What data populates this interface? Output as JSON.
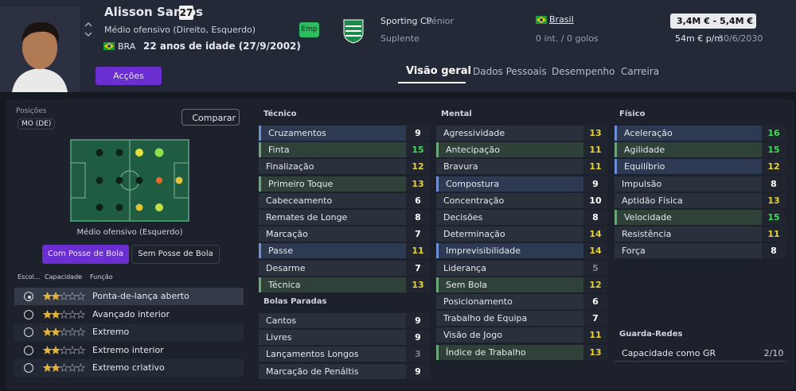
{
  "header": {
    "name": "Alisson Santos",
    "number": "27",
    "position": "Médio ofensivo (Direito, Esquerdo)",
    "nation_code": "BRA",
    "age": "22 anos de idade (27/9/2002)",
    "badge": "Emp",
    "club": "Sporting CP",
    "squad": "Sénior",
    "status": "Suplente",
    "country": "Brasil",
    "caps": "0 int. / 0 golos",
    "value": "3,4M € - 5,4M €",
    "wage": "54m € p/m",
    "contract": "30/6/2030",
    "actions": "Acções"
  },
  "tabs": [
    "Visão geral",
    "Dados Pessoais",
    "Desempenho",
    "Carreira"
  ],
  "left": {
    "positions_label": "Posições",
    "position": "MO (DE)",
    "compare": "Comparar",
    "pitch_caption": "Médio ofensivo (Esquerdo)",
    "buttons": [
      "Com Posse de Bola",
      "Sem Posse de Bola"
    ],
    "columns": [
      "Escol...",
      "Capacidade",
      "Função"
    ],
    "roles": [
      {
        "name": "Ponta-de-lança aberto",
        "stars": 2
      },
      {
        "name": "Avançado interior",
        "stars": 2
      },
      {
        "name": "Extremo",
        "stars": 2
      },
      {
        "name": "Extremo interior",
        "stars": 2
      },
      {
        "name": "Extremo criativo",
        "stars": 2
      }
    ]
  },
  "sections": [
    {
      "title": "Técnico",
      "rows": [
        {
          "name": "Cruzamentos",
          "value": 9,
          "highlight": "blue"
        },
        {
          "name": "Finta",
          "value": 15,
          "highlight": "green"
        },
        {
          "name": "Finalização",
          "value": 12
        },
        {
          "name": "Primeiro Toque",
          "value": 13,
          "highlight": "green"
        },
        {
          "name": "Cabeceamento",
          "value": 6
        },
        {
          "name": "Remates de Longe",
          "value": 8
        },
        {
          "name": "Marcação",
          "value": 7
        },
        {
          "name": "Passe",
          "value": 11,
          "highlight": "blue"
        },
        {
          "name": "Desarme",
          "value": 7
        },
        {
          "name": "Técnica",
          "value": 13,
          "highlight": "green"
        }
      ]
    },
    {
      "title": "Bolas Paradas",
      "rows": [
        {
          "name": "Cantos",
          "value": 9
        },
        {
          "name": "Livres",
          "value": 9
        },
        {
          "name": "Lançamentos Longos",
          "value": 3
        },
        {
          "name": "Marcação de Penáltis",
          "value": 9
        }
      ]
    },
    {
      "title": "Mental",
      "rows": [
        {
          "name": "Agressividade",
          "value": 13
        },
        {
          "name": "Antecipação",
          "value": 11,
          "highlight": "green"
        },
        {
          "name": "Bravura",
          "value": 11
        },
        {
          "name": "Compostura",
          "value": 9,
          "highlight": "blue"
        },
        {
          "name": "Concentração",
          "value": 10
        },
        {
          "name": "Decisões",
          "value": 8
        },
        {
          "name": "Determinação",
          "value": 14
        },
        {
          "name": "Imprevisibilidade",
          "value": 14,
          "highlight": "blue"
        },
        {
          "name": "Liderança",
          "value": 5
        },
        {
          "name": "Sem Bola",
          "value": 12,
          "highlight": "green"
        },
        {
          "name": "Posicionamento",
          "value": 6
        },
        {
          "name": "Trabalho de Equipa",
          "value": 7
        },
        {
          "name": "Visão de Jogo",
          "value": 11
        },
        {
          "name": "Índice de Trabalho",
          "value": 13,
          "highlight": "green"
        }
      ]
    },
    {
      "title": "Físico",
      "rows": [
        {
          "name": "Aceleração",
          "value": 16,
          "highlight": "blue"
        },
        {
          "name": "Agilidade",
          "value": 15,
          "highlight": "green"
        },
        {
          "name": "Equilíbrio",
          "value": 12,
          "highlight": "blue"
        },
        {
          "name": "Impulsão",
          "value": 8
        },
        {
          "name": "Aptidão Física",
          "value": 13
        },
        {
          "name": "Velocidade",
          "value": 15,
          "highlight": "green"
        },
        {
          "name": "Resistência",
          "value": 11
        },
        {
          "name": "Força",
          "value": 8
        }
      ]
    },
    {
      "title": "Guarda-Redes",
      "rows": [
        {
          "name": "Capacidade como GR",
          "value_text": "2/10"
        }
      ]
    }
  ]
}
